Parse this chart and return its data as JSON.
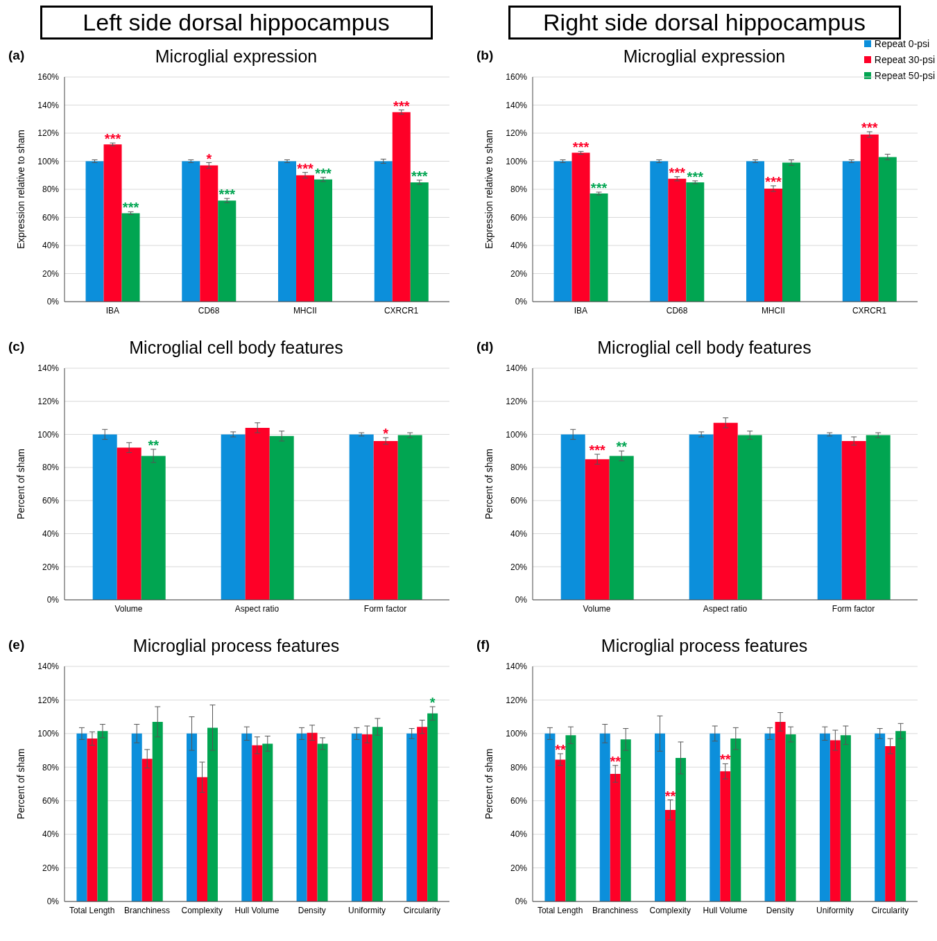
{
  "chart_data": [
    {
      "type": "bar",
      "title": "Microglial expression",
      "ylabel": "Expression  relative to sham",
      "annotations": [
        "Left side dorsal hippocampus",
        "(a)"
      ],
      "categories": [
        "IBA",
        "CD68",
        "MHCII",
        "CXRCR1"
      ],
      "ylim": [
        0,
        160
      ],
      "yticks": [
        {
          "value": 0,
          "label": "0%"
        },
        {
          "value": 20,
          "label": "20%"
        },
        {
          "value": 40,
          "label": "40%"
        },
        {
          "value": 60,
          "label": "60%"
        },
        {
          "value": 80,
          "label": "80%"
        },
        {
          "value": 100,
          "label": "100%"
        },
        {
          "value": 120,
          "label": "120%"
        },
        {
          "value": 140,
          "label": "140%"
        },
        {
          "value": 160,
          "label": "160%"
        }
      ],
      "grid": "y",
      "legend": false,
      "series": [
        {
          "color": "#0c8fdb",
          "values": [
            100,
            100,
            100,
            100
          ],
          "errors": [
            1,
            1,
            1,
            1.5
          ]
        },
        {
          "color": "#fe0027",
          "values": [
            112,
            97,
            90,
            135
          ],
          "errors": [
            1,
            2,
            2,
            1.5
          ],
          "value_labels": [
            "***",
            "*",
            "***",
            "***"
          ]
        },
        {
          "color": "#01a551",
          "values": [
            63,
            72,
            87,
            85
          ],
          "errors": [
            1,
            1.5,
            1.5,
            1.5
          ],
          "value_labels": [
            "***",
            "***",
            "***",
            "***"
          ]
        }
      ]
    },
    {
      "type": "bar",
      "title": "Microglial expression",
      "ylabel": "Expression  relative to sham",
      "annotations": [
        "Right side dorsal hippocampus",
        "(b)"
      ],
      "categories": [
        "IBA",
        "CD68",
        "MHCII",
        "CXRCR1"
      ],
      "ylim": [
        0,
        160
      ],
      "yticks": [
        {
          "value": 0,
          "label": "0%"
        },
        {
          "value": 20,
          "label": "20%"
        },
        {
          "value": 40,
          "label": "40%"
        },
        {
          "value": 60,
          "label": "60%"
        },
        {
          "value": 80,
          "label": "80%"
        },
        {
          "value": 100,
          "label": "100%"
        },
        {
          "value": 120,
          "label": "120%"
        },
        {
          "value": 140,
          "label": "140%"
        },
        {
          "value": 160,
          "label": "160%"
        }
      ],
      "grid": "y",
      "legend": "top right",
      "series": [
        {
          "name": "Repeat 0-psi",
          "color": "#0c8fdb",
          "values": [
            100,
            100,
            100,
            100
          ],
          "errors": [
            1,
            1,
            1,
            1
          ]
        },
        {
          "name": "Repeat 30-psi",
          "color": "#fe0027",
          "values": [
            106,
            87.5,
            80.5,
            119
          ],
          "errors": [
            1,
            1.5,
            2,
            2
          ],
          "value_labels": [
            "***",
            "***",
            "***",
            "***"
          ]
        },
        {
          "name": "Repeat 50-psi",
          "color": "#01a551",
          "values": [
            77,
            85,
            99,
            103
          ],
          "errors": [
            1,
            1,
            2,
            2
          ],
          "value_labels": [
            "***",
            "***",
            null,
            null
          ]
        }
      ]
    },
    {
      "type": "bar",
      "title": "Microglial cell body  features",
      "ylabel": "Percent of sham",
      "annotations": [
        "(c)"
      ],
      "categories": [
        "Volume",
        "Aspect ratio",
        "Form factor"
      ],
      "ylim": [
        0,
        140
      ],
      "yticks": [
        {
          "value": 0,
          "label": "0%"
        },
        {
          "value": 20,
          "label": "20%"
        },
        {
          "value": 40,
          "label": "40%"
        },
        {
          "value": 60,
          "label": "60%"
        },
        {
          "value": 80,
          "label": "80%"
        },
        {
          "value": 100,
          "label": "100%"
        },
        {
          "value": 120,
          "label": "120%"
        },
        {
          "value": 140,
          "label": "140%"
        }
      ],
      "grid": "y",
      "legend": false,
      "series": [
        {
          "color": "#0c8fdb",
          "values": [
            100,
            100,
            100
          ],
          "errors": [
            3,
            1.5,
            1
          ]
        },
        {
          "color": "#fe0027",
          "values": [
            92,
            104,
            96
          ],
          "errors": [
            3,
            3,
            2
          ],
          "value_labels": [
            null,
            null,
            "*"
          ]
        },
        {
          "color": "#01a551",
          "values": [
            87,
            99,
            99.5
          ],
          "errors": [
            4,
            3,
            1.5
          ],
          "value_labels": [
            "**",
            null,
            null
          ]
        }
      ]
    },
    {
      "type": "bar",
      "title": "Microglial cell body  features",
      "ylabel": "Percent of sham",
      "annotations": [
        "(d)"
      ],
      "categories": [
        "Volume",
        "Aspect ratio",
        "Form factor"
      ],
      "ylim": [
        0,
        140
      ],
      "yticks": [
        {
          "value": 0,
          "label": "0%"
        },
        {
          "value": 20,
          "label": "20%"
        },
        {
          "value": 40,
          "label": "40%"
        },
        {
          "value": 60,
          "label": "60%"
        },
        {
          "value": 80,
          "label": "80%"
        },
        {
          "value": 100,
          "label": "100%"
        },
        {
          "value": 120,
          "label": "120%"
        },
        {
          "value": 140,
          "label": "140%"
        }
      ],
      "grid": "y",
      "legend": false,
      "series": [
        {
          "color": "#0c8fdb",
          "values": [
            100,
            100,
            100
          ],
          "errors": [
            3,
            1.5,
            1
          ]
        },
        {
          "color": "#fe0027",
          "values": [
            85,
            107,
            96
          ],
          "errors": [
            3,
            3,
            2.5
          ],
          "value_labels": [
            "***",
            null,
            null
          ]
        },
        {
          "color": "#01a551",
          "values": [
            87,
            99.5,
            99.5
          ],
          "errors": [
            3,
            2.5,
            1.5
          ],
          "value_labels": [
            "**",
            null,
            null
          ]
        }
      ]
    },
    {
      "type": "bar",
      "title": "Microglial process features",
      "ylabel": "Percent of sham",
      "annotations": [
        "(e)"
      ],
      "categories": [
        "Total Length",
        "Branchiness",
        "Complexity",
        "Hull Volume",
        "Density",
        "Uniformity",
        "Circularity"
      ],
      "ylim": [
        0,
        140
      ],
      "yticks": [
        {
          "value": 0,
          "label": "0%"
        },
        {
          "value": 20,
          "label": "20%"
        },
        {
          "value": 40,
          "label": "40%"
        },
        {
          "value": 60,
          "label": "60%"
        },
        {
          "value": 80,
          "label": "80%"
        },
        {
          "value": 100,
          "label": "100%"
        },
        {
          "value": 120,
          "label": "120%"
        },
        {
          "value": 140,
          "label": "140%"
        }
      ],
      "grid": "y",
      "legend": false,
      "series": [
        {
          "color": "#0c8fdb",
          "values": [
            100,
            100,
            100,
            100,
            100,
            100,
            100
          ],
          "errors": [
            3.5,
            5.5,
            10,
            4,
            3.5,
            3.5,
            3
          ]
        },
        {
          "color": "#fe0027",
          "values": [
            97,
            85,
            74,
            93,
            100.5,
            99.5,
            104
          ],
          "errors": [
            4,
            5.5,
            9,
            5,
            4.5,
            5,
            4
          ]
        },
        {
          "color": "#01a551",
          "values": [
            101.5,
            107,
            103.5,
            94,
            94,
            104,
            112
          ],
          "errors": [
            4,
            9,
            13.5,
            4.5,
            3.5,
            5,
            4
          ],
          "value_labels": [
            null,
            null,
            null,
            null,
            null,
            null,
            "*"
          ]
        }
      ]
    },
    {
      "type": "bar",
      "title": "Microglial process features",
      "ylabel": "Percent of sham",
      "annotations": [
        "(f)"
      ],
      "categories": [
        "Total Length",
        "Branchiness",
        "Complexity",
        "Hull Volume",
        "Density",
        "Uniformity",
        "Circularity"
      ],
      "ylim": [
        0,
        140
      ],
      "yticks": [
        {
          "value": 0,
          "label": "0%"
        },
        {
          "value": 20,
          "label": "20%"
        },
        {
          "value": 40,
          "label": "40%"
        },
        {
          "value": 60,
          "label": "60%"
        },
        {
          "value": 80,
          "label": "80%"
        },
        {
          "value": 100,
          "label": "100%"
        },
        {
          "value": 120,
          "label": "120%"
        },
        {
          "value": 140,
          "label": "140%"
        }
      ],
      "grid": "y",
      "legend": false,
      "series": [
        {
          "color": "#0c8fdb",
          "values": [
            100,
            100,
            100,
            100,
            100,
            100,
            100
          ],
          "errors": [
            3.5,
            5.5,
            10.5,
            4.5,
            3.5,
            4,
            3
          ]
        },
        {
          "color": "#fe0027",
          "values": [
            84.5,
            76,
            54.5,
            77.5,
            107,
            96,
            92.5
          ],
          "errors": [
            3.5,
            5,
            6,
            4.5,
            5.5,
            6,
            4.5
          ],
          "value_labels": [
            "**",
            "**",
            "**",
            "**",
            null,
            null,
            null
          ]
        },
        {
          "color": "#01a551",
          "values": [
            99,
            96.5,
            85.5,
            97,
            99.5,
            99,
            101.5
          ],
          "errors": [
            5,
            6.5,
            9.5,
            6.5,
            4.5,
            5.5,
            4.5
          ]
        }
      ]
    }
  ]
}
